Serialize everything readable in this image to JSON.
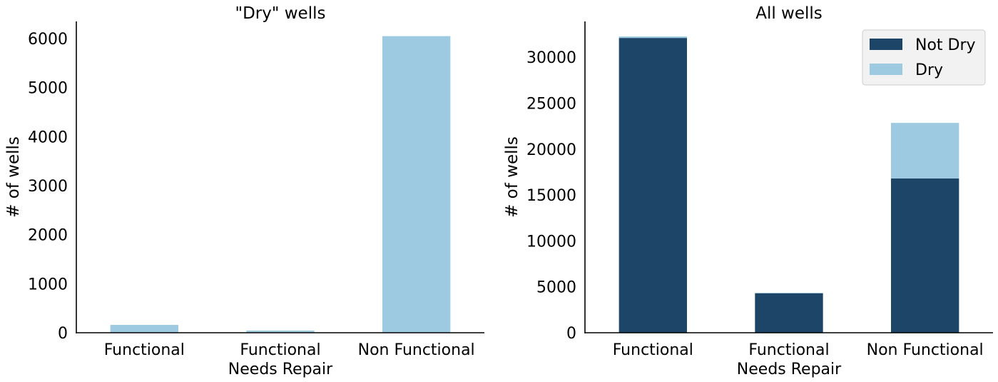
{
  "chart_data": [
    {
      "type": "bar",
      "title": "\"Dry\" wells",
      "xlabel": "",
      "ylabel": "# of wells",
      "categories": [
        [
          "Functional"
        ],
        [
          "Functional",
          "Needs Repair"
        ],
        [
          "Non Functional"
        ]
      ],
      "series": [
        {
          "name": "Dry",
          "values": [
            160,
            45,
            6050
          ],
          "color": "#9ecae1"
        }
      ],
      "ylim": [
        0,
        6350
      ],
      "yticks": [
        0,
        1000,
        2000,
        3000,
        4000,
        5000,
        6000
      ],
      "legend": null,
      "grid": false
    },
    {
      "type": "bar",
      "stacked": true,
      "title": "All wells",
      "xlabel": "",
      "ylabel": "# of wells",
      "categories": [
        [
          "Functional"
        ],
        [
          "Functional",
          "Needs Repair"
        ],
        [
          "Non Functional"
        ]
      ],
      "series": [
        {
          "name": "Not Dry",
          "values": [
            32100,
            4300,
            16800
          ],
          "color": "#1c4567"
        },
        {
          "name": "Dry",
          "values": [
            160,
            45,
            6050
          ],
          "color": "#9ecae1"
        }
      ],
      "ylim": [
        0,
        33900
      ],
      "yticks": [
        0,
        5000,
        10000,
        15000,
        20000,
        25000,
        30000
      ],
      "legend": "top-right",
      "grid": false
    }
  ]
}
